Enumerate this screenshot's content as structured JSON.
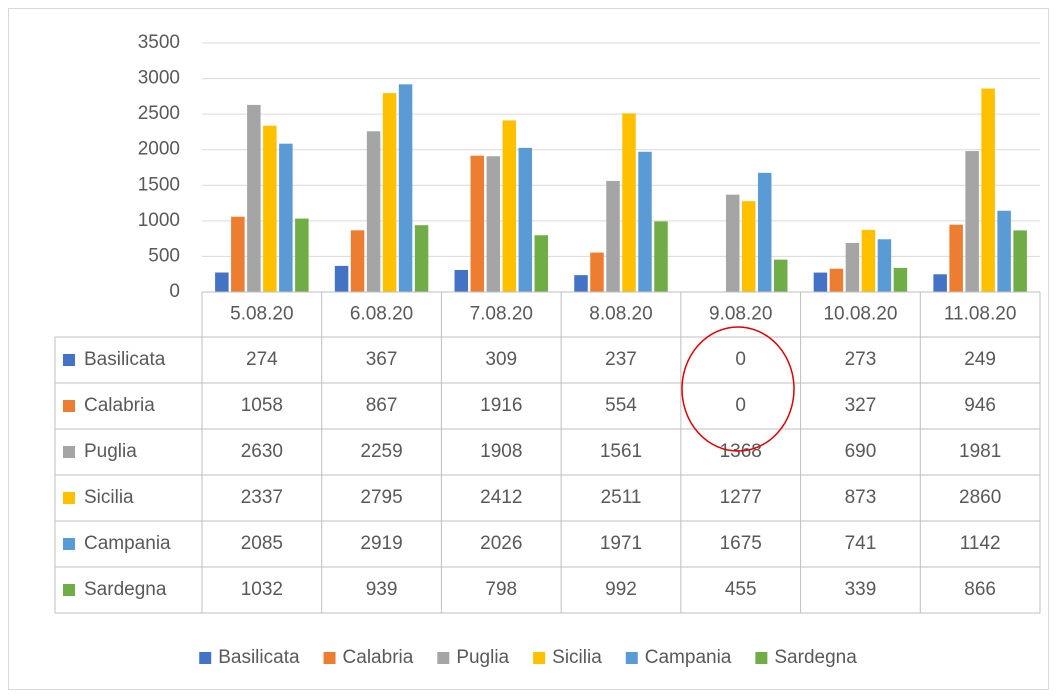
{
  "chart_data": {
    "type": "bar",
    "categories": [
      "5.08.20",
      "6.08.20",
      "7.08.20",
      "8.08.20",
      "9.08.20",
      "10.08.20",
      "11.08.20"
    ],
    "series": [
      {
        "name": "Basilicata",
        "color": "#4472c4",
        "values": [
          274,
          367,
          309,
          237,
          0,
          273,
          249
        ]
      },
      {
        "name": "Calabria",
        "color": "#ed7d31",
        "values": [
          1058,
          867,
          1916,
          554,
          0,
          327,
          946
        ]
      },
      {
        "name": "Puglia",
        "color": "#a5a5a5",
        "values": [
          2630,
          2259,
          1908,
          1561,
          1368,
          690,
          1981
        ]
      },
      {
        "name": "Sicilia",
        "color": "#ffc000",
        "values": [
          2337,
          2795,
          2412,
          2511,
          1277,
          873,
          2860
        ]
      },
      {
        "name": "Campania",
        "color": "#5b9bd5",
        "values": [
          2085,
          2919,
          2026,
          1971,
          1675,
          741,
          1142
        ]
      },
      {
        "name": "Sardegna",
        "color": "#70ad47",
        "values": [
          1032,
          939,
          798,
          992,
          455,
          339,
          866
        ]
      }
    ],
    "ylim": [
      0,
      3500
    ],
    "yticks": [
      0,
      500,
      1000,
      1500,
      2000,
      2500,
      3000,
      3500
    ],
    "grid": true,
    "legend": "bottom"
  }
}
